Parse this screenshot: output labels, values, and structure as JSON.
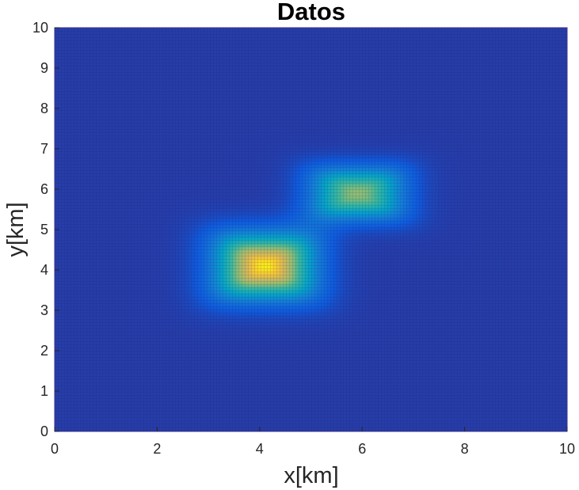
{
  "chart_data": {
    "type": "heatmap",
    "title": "Datos",
    "xlabel": "x[km]",
    "ylabel": "y[km]",
    "xlim": [
      0,
      10
    ],
    "ylim": [
      0,
      10
    ],
    "xticks": [
      "0",
      "2",
      "4",
      "6",
      "8",
      "10"
    ],
    "yticks": [
      "0",
      "1",
      "2",
      "3",
      "4",
      "5",
      "6",
      "7",
      "8",
      "9",
      "10"
    ],
    "colormap": "parula",
    "colorbar": false,
    "grid": "fine mesh",
    "sources": [
      {
        "name": "",
        "center_x": 4.1,
        "center_y": 4.1,
        "half_width_x": 0.9,
        "half_width_y": 0.75,
        "amplitude": 1.0
      },
      {
        "name": "",
        "center_x": 5.9,
        "center_y": 5.9,
        "half_width_x": 0.85,
        "half_width_y": 0.6,
        "amplitude": 0.72
      }
    ],
    "background_level": 0.06
  }
}
